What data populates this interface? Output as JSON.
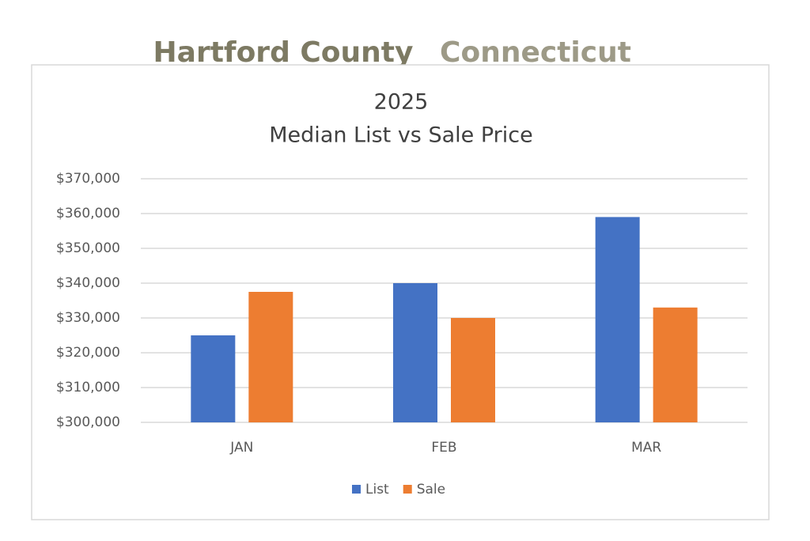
{
  "header": {
    "county": "Hartford County",
    "state": "Connecticut"
  },
  "chart_data": {
    "type": "bar",
    "title": "2025",
    "subtitle": "Median List vs Sale Price",
    "categories": [
      "JAN",
      "FEB",
      "MAR"
    ],
    "series": [
      {
        "name": "List",
        "color": "#4472c4",
        "values": [
          325000,
          340000,
          359000
        ]
      },
      {
        "name": "Sale",
        "color": "#ed7d31",
        "values": [
          337500,
          330000,
          333000
        ]
      }
    ],
    "ylim": [
      300000,
      370000
    ],
    "yticks": [
      {
        "value": 300000,
        "label": "$300,000"
      },
      {
        "value": 310000,
        "label": "$310,000"
      },
      {
        "value": 320000,
        "label": "$320,000"
      },
      {
        "value": 330000,
        "label": "$330,000"
      },
      {
        "value": 340000,
        "label": "$340,000"
      },
      {
        "value": 350000,
        "label": "$350,000"
      },
      {
        "value": 360000,
        "label": "$360,000"
      },
      {
        "value": 370000,
        "label": "$370,000"
      }
    ],
    "grid": true,
    "legend": "bottom"
  }
}
